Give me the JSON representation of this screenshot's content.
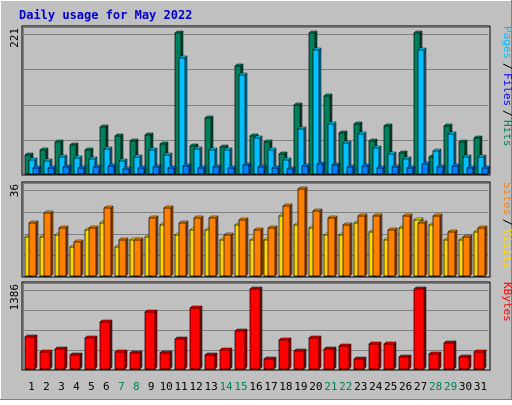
{
  "title": "Daily usage for May 2022",
  "colors": {
    "background": "#c0c0c0",
    "title_text": "#0000cc",
    "hits": "#00805c",
    "files": "#00c0ff",
    "pages": "#0080ff",
    "visits": "#ff8000",
    "sites": "#ffd700",
    "kbytes": "#ff0000",
    "weekday_label": "#008040",
    "weekend_label": "#00805c",
    "grid": "#808080"
  },
  "chart_data": [
    {
      "type": "bar",
      "title": "Hits / Files / Pages",
      "legend": [
        {
          "name": "Pages",
          "color": "#00c0ff"
        },
        {
          "name": "Files",
          "color": "#0000ff"
        },
        {
          "name": "Hits",
          "color": "#00805c"
        }
      ],
      "y_max_label": "221",
      "ylim": [
        0,
        221
      ],
      "categories": [
        "1",
        "2",
        "3",
        "4",
        "5",
        "6",
        "7",
        "8",
        "9",
        "10",
        "11",
        "12",
        "13",
        "14",
        "15",
        "16",
        "17",
        "18",
        "19",
        "20",
        "21",
        "22",
        "23",
        "24",
        "25",
        "26",
        "27",
        "28",
        "29",
        "30",
        "31"
      ],
      "weekend_days": [
        7,
        8,
        14,
        15,
        21,
        22,
        28,
        29
      ],
      "series": [
        {
          "name": "Hits",
          "values": [
            30,
            37,
            50,
            45,
            38,
            73,
            60,
            52,
            61,
            47,
            221,
            44,
            88,
            43,
            170,
            60,
            50,
            31,
            108,
            221,
            122,
            64,
            79,
            51,
            76,
            33,
            221,
            26,
            76,
            50,
            57
          ]
        },
        {
          "name": "Files",
          "values": [
            22,
            20,
            26,
            25,
            24,
            39,
            20,
            26,
            38,
            30,
            182,
            39,
            38,
            37,
            155,
            56,
            37,
            22,
            70,
            194,
            78,
            48,
            62,
            40,
            32,
            24,
            195,
            36,
            63,
            27,
            26
          ]
        },
        {
          "name": "Pages",
          "values": [
            10,
            9,
            11,
            10,
            11,
            12,
            8,
            9,
            11,
            9,
            13,
            10,
            11,
            10,
            14,
            11,
            9,
            8,
            13,
            15,
            14,
            11,
            12,
            10,
            11,
            9,
            15,
            11,
            12,
            10,
            10
          ]
        }
      ]
    },
    {
      "type": "bar",
      "title": "Sites / Visits",
      "legend": [
        {
          "name": "Sites",
          "color": "#ff8000"
        },
        {
          "name": "Visits",
          "color": "#ffd700"
        }
      ],
      "y_max_label": "36",
      "ylim": [
        0,
        36
      ],
      "categories": [
        "1",
        "2",
        "3",
        "4",
        "5",
        "6",
        "7",
        "8",
        "9",
        "10",
        "11",
        "12",
        "13",
        "14",
        "15",
        "16",
        "17",
        "18",
        "19",
        "20",
        "21",
        "22",
        "23",
        "24",
        "25",
        "26",
        "27",
        "28",
        "29",
        "30",
        "31"
      ],
      "series": [
        {
          "name": "Visits",
          "values": [
            16,
            16,
            17,
            12,
            19,
            22,
            12,
            15,
            16,
            21,
            17,
            19,
            19,
            15,
            21,
            15,
            15,
            25,
            21,
            20,
            17,
            17,
            22,
            18,
            15,
            20,
            23,
            21,
            15,
            15,
            18
          ]
        },
        {
          "name": "Sites",
          "values": [
            22,
            26,
            20,
            14,
            20,
            28,
            15,
            15,
            24,
            28,
            22,
            24,
            24,
            17,
            23,
            19,
            20,
            29,
            36,
            27,
            24,
            21,
            25,
            25,
            19,
            25,
            22,
            25,
            18,
            16,
            20
          ]
        }
      ]
    },
    {
      "type": "bar",
      "title": "KBytes",
      "legend": [
        {
          "name": "KBytes",
          "color": "#ff0000"
        }
      ],
      "y_max_label": "1386",
      "ylim": [
        0,
        1386
      ],
      "categories": [
        "1",
        "2",
        "3",
        "4",
        "5",
        "6",
        "7",
        "8",
        "9",
        "10",
        "11",
        "12",
        "13",
        "14",
        "15",
        "16",
        "17",
        "18",
        "19",
        "20",
        "21",
        "22",
        "23",
        "24",
        "25",
        "26",
        "27",
        "28",
        "29",
        "30",
        "31"
      ],
      "series": [
        {
          "name": "KBytes",
          "values": [
            553,
            293,
            345,
            235,
            538,
            815,
            302,
            284,
            992,
            283,
            516,
            1063,
            246,
            332,
            665,
            1386,
            177,
            506,
            320,
            543,
            343,
            405,
            181,
            427,
            440,
            216,
            1386,
            261,
            446,
            211,
            290
          ]
        }
      ]
    }
  ]
}
